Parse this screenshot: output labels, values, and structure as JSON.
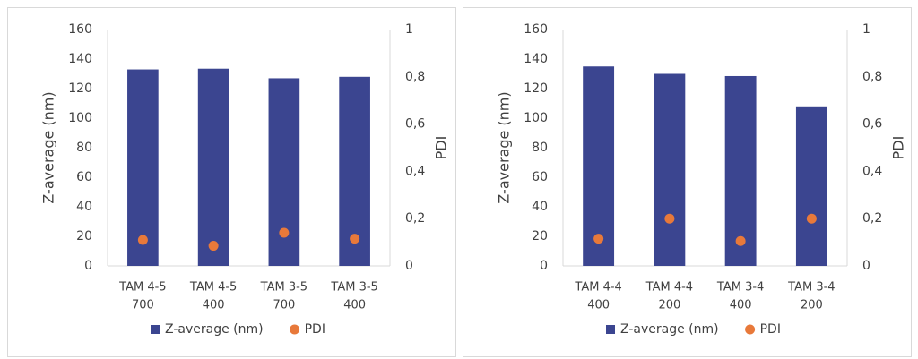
{
  "chart_data": [
    {
      "type": "bar",
      "y_label": "Z-average (nm)",
      "y2_label": "PDI",
      "categories": [
        [
          "TAM 4-5",
          "700"
        ],
        [
          "TAM 4-5",
          "400"
        ],
        [
          "TAM 3-5",
          "700"
        ],
        [
          "TAM 3-5",
          "400"
        ]
      ],
      "series": [
        {
          "name": "Z-average (nm)",
          "color": "#3b4590",
          "type": "bar",
          "values": [
            133,
            133.5,
            127,
            128
          ]
        },
        {
          "name": "PDI",
          "color": "#e8793a",
          "type": "scatter",
          "axis": "y2",
          "values": [
            0.11,
            0.085,
            0.14,
            0.115
          ]
        }
      ],
      "ylim": [
        0,
        160
      ],
      "yticks": [
        0,
        20,
        40,
        60,
        80,
        100,
        120,
        140,
        160
      ],
      "y2lim": [
        0,
        1
      ],
      "y2ticks": [
        0,
        {
          "value": 0.2,
          "label": "0,2"
        },
        {
          "value": 0.4,
          "label": "0,4"
        },
        {
          "value": 0.6,
          "label": "0,6"
        },
        {
          "value": 0.8,
          "label": "0,8"
        },
        1
      ],
      "grid": false,
      "legend": "bottom"
    },
    {
      "type": "bar",
      "y_label": "Z-average (nm)",
      "y2_label": "PDI",
      "categories": [
        [
          "TAM 4-4",
          "400"
        ],
        [
          "TAM 4-4",
          "200"
        ],
        [
          "TAM 3-4",
          "400"
        ],
        [
          "TAM 3-4",
          "200"
        ]
      ],
      "series": [
        {
          "name": "Z-average (nm)",
          "color": "#3b4590",
          "type": "bar",
          "values": [
            135,
            130,
            128.5,
            108
          ]
        },
        {
          "name": "PDI",
          "color": "#e8793a",
          "type": "scatter",
          "axis": "y2",
          "values": [
            0.115,
            0.2,
            0.105,
            0.2
          ]
        }
      ],
      "ylim": [
        0,
        160
      ],
      "yticks": [
        0,
        20,
        40,
        60,
        80,
        100,
        120,
        140,
        160
      ],
      "y2lim": [
        0,
        1
      ],
      "y2ticks": [
        0,
        {
          "value": 0.2,
          "label": "0,2"
        },
        {
          "value": 0.4,
          "label": "0,4"
        },
        {
          "value": 0.6,
          "label": "0,6"
        },
        {
          "value": 0.8,
          "label": "0,8"
        },
        1
      ],
      "grid": false,
      "legend": "bottom"
    }
  ]
}
